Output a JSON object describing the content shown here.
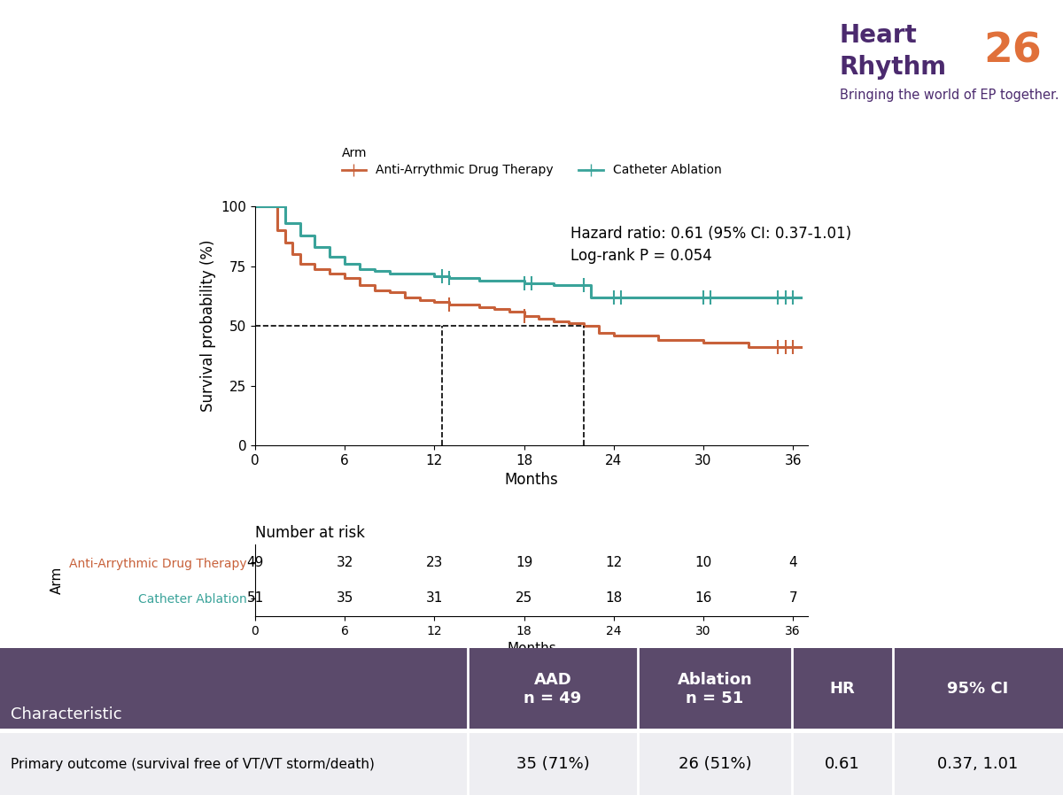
{
  "chart_data": {
    "type": "step",
    "y_label": "Survival probability (%)",
    "x_label": "Months",
    "legend_title": "Arm",
    "legend": "top",
    "annotations": [
      "Hazard ratio: 0.61 (95% CI: 0.37-1.01)",
      "Log-rank P = 0.054"
    ],
    "xlim": [
      0,
      37
    ],
    "xticks": [
      0,
      6,
      12,
      18,
      24,
      30,
      36
    ],
    "ylim": [
      0,
      100
    ],
    "yticks": [
      0,
      25,
      50,
      75,
      100
    ],
    "grid": false,
    "reference_lines": {
      "y": 50,
      "x": [
        12.5,
        22
      ]
    },
    "series": [
      {
        "name": "Anti-Arrythmic Drug Therapy",
        "color": "#c8613a",
        "marker": "|",
        "x": [
          0,
          1,
          1.5,
          2,
          2.5,
          3,
          4,
          5,
          6,
          7,
          8,
          9,
          10,
          11,
          12,
          13,
          15,
          16,
          17,
          18,
          19,
          20,
          21,
          22,
          23,
          24,
          27,
          30,
          33,
          36.5
        ],
        "values": [
          100,
          100,
          90,
          85,
          80,
          76,
          74,
          72,
          70,
          67,
          65,
          64,
          62,
          61,
          60,
          59,
          58,
          57,
          56,
          54,
          53,
          52,
          51,
          50,
          47,
          46,
          44,
          43,
          41,
          41
        ],
        "censored": [
          13,
          18,
          35,
          35.5,
          36
        ]
      },
      {
        "name": "Catheter Ablation",
        "color": "#3aa39a",
        "marker": "|",
        "x": [
          0,
          1,
          2,
          3,
          4,
          5,
          6,
          7,
          8,
          9,
          12,
          13,
          15,
          18,
          20,
          22.5,
          36.5
        ],
        "values": [
          100,
          100,
          93,
          88,
          83,
          79,
          76,
          74,
          73,
          72,
          71,
          70,
          69,
          68,
          67,
          62,
          62
        ],
        "censored": [
          12.5,
          13,
          18,
          18.5,
          22,
          24,
          24.5,
          30,
          30.5,
          35,
          35.5,
          36
        ]
      }
    ],
    "risk_table": {
      "title": "Number at risk",
      "y_label": "Arm",
      "x_label": "Months",
      "times": [
        0,
        6,
        12,
        18,
        24,
        30,
        36
      ],
      "rows": [
        {
          "name": "Anti-Arrythmic Drug Therapy",
          "values": [
            49,
            32,
            23,
            19,
            12,
            10,
            4
          ]
        },
        {
          "name": "Catheter Ablation",
          "values": [
            51,
            35,
            31,
            25,
            18,
            16,
            7
          ]
        }
      ]
    }
  },
  "summary_table": {
    "header": [
      "Characteristic",
      "AAD\nn = 49",
      "Ablation\nn = 51",
      "HR",
      "95% CI"
    ],
    "rows": [
      [
        "Primary outcome (survival free of VT/VT storm/death)",
        "35 (71%)",
        "26 (51%)",
        "0.61",
        "0.37, 1.01"
      ]
    ]
  },
  "logo": {
    "line1": "Heart",
    "line2": "Rhythm",
    "number": "26",
    "tagline": "Bringing the world of EP together."
  }
}
